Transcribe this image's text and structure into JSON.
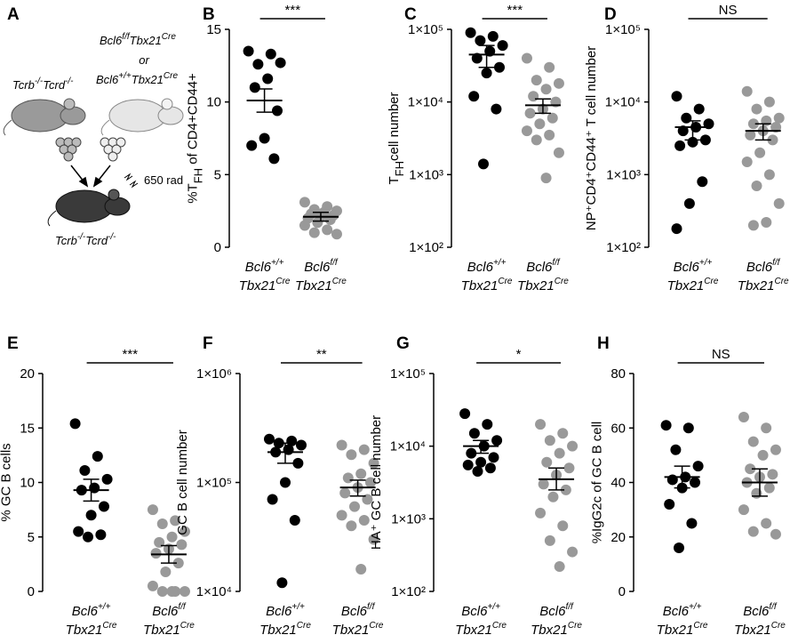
{
  "diagram": {
    "letter": "A",
    "donor_left": [
      "Tcrb",
      "-/-",
      "Tcrd",
      "-/-"
    ],
    "donor_right_1": [
      "Bcl6",
      "f/f",
      "Tbx21",
      "Cre"
    ],
    "or": "or",
    "donor_right_2": [
      "Bcl6",
      "+/+",
      "Tbx21",
      "Cre"
    ],
    "dose": "650 rad",
    "recipient": [
      "Tcrb",
      "-/-",
      "Tcrd",
      "-/-"
    ]
  },
  "chart_data": [
    {
      "type": "dot",
      "letter": "B",
      "ylabel": [
        "%T",
        "FH",
        " of CD4+CD44+"
      ],
      "significance": "***",
      "log": false,
      "ylim": [
        0,
        15
      ],
      "yticks": [
        0,
        5,
        10,
        15
      ],
      "categories": [
        [
          "Bcl6",
          "+/+",
          "Tbx21",
          "Cre"
        ],
        [
          "Bcl6",
          "f/f",
          "Tbx21",
          "Cre"
        ]
      ],
      "groups": [
        {
          "color": "#000000",
          "values": [
            13.5,
            13.3,
            12.6,
            12.7,
            11.6,
            11.0,
            9.4,
            7.5,
            7.0,
            6.1
          ],
          "mean": 10.1,
          "error": [
            9.3,
            10.9
          ]
        },
        {
          "color": "#999999",
          "values": [
            3.1,
            2.8,
            2.6,
            2.5,
            2.4,
            2.3,
            2.2,
            2.1,
            2.0,
            1.9,
            1.7,
            1.5,
            1.2,
            1.0,
            0.9
          ],
          "mean": 2.1,
          "error": [
            1.8,
            2.4
          ]
        }
      ]
    },
    {
      "type": "dot",
      "letter": "C",
      "ylabel": [
        "T",
        "FH",
        "cell number"
      ],
      "significance": "***",
      "log": true,
      "ylim": [
        100,
        100000
      ],
      "yticks": [
        {
          "value": 100,
          "label": "1×10²"
        },
        {
          "value": 1000,
          "label": "1×10³"
        },
        {
          "value": 10000,
          "label": "1×10⁴"
        },
        {
          "value": 100000,
          "label": "1×10⁵"
        }
      ],
      "categories": [
        [
          "Bcl6",
          "+/+",
          "Tbx21",
          "Cre"
        ],
        [
          "Bcl6",
          "f/f",
          "Tbx21",
          "Cre"
        ]
      ],
      "groups": [
        {
          "color": "#000000",
          "values": [
            90000,
            80000,
            70000,
            60000,
            50000,
            40000,
            30000,
            25000,
            12000,
            8000,
            1400
          ],
          "mean": 45000,
          "error": [
            30000,
            60000
          ]
        },
        {
          "color": "#999999",
          "values": [
            40000,
            30000,
            20000,
            18000,
            15000,
            12000,
            10000,
            8000,
            7000,
            6000,
            5000,
            4000,
            3500,
            3000,
            2000,
            900
          ],
          "mean": 9000,
          "error": [
            7000,
            11000
          ]
        }
      ]
    },
    {
      "type": "dot",
      "letter": "D",
      "ylabel": [
        "NP⁺CD4⁺CD44⁺ T cell number"
      ],
      "significance": "NS",
      "log": true,
      "ylim": [
        100,
        100000
      ],
      "yticks": [
        {
          "value": 100,
          "label": "1×10²"
        },
        {
          "value": 1000,
          "label": "1×10³"
        },
        {
          "value": 10000,
          "label": "1×10⁴"
        },
        {
          "value": 100000,
          "label": "1×10⁵"
        }
      ],
      "categories": [
        [
          "Bcl6",
          "+/+",
          "Tbx21",
          "Cre"
        ],
        [
          "Bcl6",
          "f/f",
          "Tbx21",
          "Cre"
        ]
      ],
      "groups": [
        {
          "color": "#000000",
          "values": [
            12000,
            8000,
            6000,
            5000,
            4500,
            4000,
            3000,
            2800,
            2500,
            800,
            400,
            180
          ],
          "mean": 4500,
          "error": [
            3000,
            5500
          ]
        },
        {
          "color": "#999999",
          "values": [
            14000,
            10000,
            8000,
            6000,
            5500,
            5000,
            4500,
            4000,
            3500,
            3000,
            2000,
            1500,
            1000,
            700,
            400,
            220,
            200
          ],
          "mean": 4000,
          "error": [
            3000,
            5000
          ]
        }
      ]
    },
    {
      "type": "dot",
      "letter": "E",
      "ylabel": [
        "% GC B cells"
      ],
      "significance": "***",
      "log": false,
      "ylim": [
        0,
        20
      ],
      "yticks": [
        0,
        5,
        10,
        15,
        20
      ],
      "categories": [
        [
          "Bcl6",
          "+/+",
          "Tbx21",
          "Cre"
        ],
        [
          "Bcl6",
          "f/f",
          "Tbx21",
          "Cre"
        ]
      ],
      "groups": [
        {
          "color": "#000000",
          "values": [
            15.4,
            12.4,
            11.1,
            10.3,
            9.5,
            9.3,
            7.8,
            7.0,
            5.5,
            5.2,
            5.0
          ],
          "mean": 9.3,
          "error": [
            8.3,
            10.3
          ]
        },
        {
          "color": "#999999",
          "values": [
            7.5,
            6.5,
            6.2,
            5.5,
            5.0,
            4.5,
            4.3,
            3.9,
            3.5,
            2.6,
            1.8,
            0.5,
            0,
            0,
            0,
            0
          ],
          "mean": 3.4,
          "error": [
            2.6,
            4.2
          ]
        }
      ]
    },
    {
      "type": "dot",
      "letter": "F",
      "ylabel": [
        "GC B cell number"
      ],
      "significance": "**",
      "log": true,
      "ylim": [
        10000,
        1000000
      ],
      "yticks": [
        {
          "value": 10000,
          "label": "1×10⁴"
        },
        {
          "value": 100000,
          "label": "1×10⁵"
        },
        {
          "value": 1000000,
          "label": "1×10⁶"
        }
      ],
      "categories": [
        [
          "Bcl6",
          "+/+",
          "Tbx21",
          "Cre"
        ],
        [
          "Bcl6",
          "f/f",
          "Tbx21",
          "Cre"
        ]
      ],
      "groups": [
        {
          "color": "#000000",
          "values": [
            250000,
            240000,
            230000,
            220000,
            200000,
            190000,
            150000,
            100000,
            70000,
            45000,
            12000
          ],
          "mean": 190000,
          "error": [
            150000,
            230000
          ]
        },
        {
          "color": "#999999",
          "values": [
            220000,
            200000,
            180000,
            150000,
            120000,
            110000,
            100000,
            90000,
            80000,
            70000,
            60000,
            50000,
            45000,
            40000,
            30000,
            16000
          ],
          "mean": 90000,
          "error": [
            75000,
            105000
          ]
        }
      ]
    },
    {
      "type": "dot",
      "letter": "G",
      "ylabel": [
        "HA⁺ GC B cell number"
      ],
      "significance": "*",
      "log": true,
      "ylim": [
        100,
        100000
      ],
      "yticks": [
        {
          "value": 100,
          "label": "1×10²"
        },
        {
          "value": 1000,
          "label": "1×10³"
        },
        {
          "value": 10000,
          "label": "1×10⁴"
        },
        {
          "value": 100000,
          "label": "1×10⁵"
        }
      ],
      "categories": [
        [
          "Bcl6",
          "+/+",
          "Tbx21",
          "Cre"
        ],
        [
          "Bcl6",
          "f/f",
          "Tbx21",
          "Cre"
        ]
      ],
      "groups": [
        {
          "color": "#000000",
          "values": [
            28000,
            20000,
            15000,
            12000,
            10000,
            8000,
            7000,
            6000,
            5500,
            5000,
            4500
          ],
          "mean": 10000,
          "error": [
            8000,
            12000
          ]
        },
        {
          "color": "#999999",
          "values": [
            20000,
            15000,
            12000,
            10000,
            8000,
            6000,
            5000,
            4000,
            3000,
            2500,
            2000,
            1200,
            800,
            500,
            350,
            220
          ],
          "mean": 3500,
          "error": [
            2500,
            5000
          ]
        }
      ]
    },
    {
      "type": "dot",
      "letter": "H",
      "ylabel": [
        "%IgG2c of GC B cell"
      ],
      "significance": "NS",
      "log": false,
      "ylim": [
        0,
        80
      ],
      "yticks": [
        0,
        20,
        40,
        60,
        80
      ],
      "categories": [
        [
          "Bcl6",
          "+/+",
          "Tbx21",
          "Cre"
        ],
        [
          "Bcl6",
          "f/f",
          "Tbx21",
          "Cre"
        ]
      ],
      "groups": [
        {
          "color": "#000000",
          "values": [
            61,
            60,
            52,
            46,
            42,
            41,
            40,
            38,
            32,
            25,
            16
          ],
          "mean": 42,
          "error": [
            38,
            46
          ]
        },
        {
          "color": "#999999",
          "values": [
            64,
            60,
            55,
            52,
            50,
            45,
            43,
            42,
            40,
            38,
            36,
            30,
            25,
            22,
            21
          ],
          "mean": 40,
          "error": [
            35,
            45
          ]
        }
      ]
    }
  ]
}
